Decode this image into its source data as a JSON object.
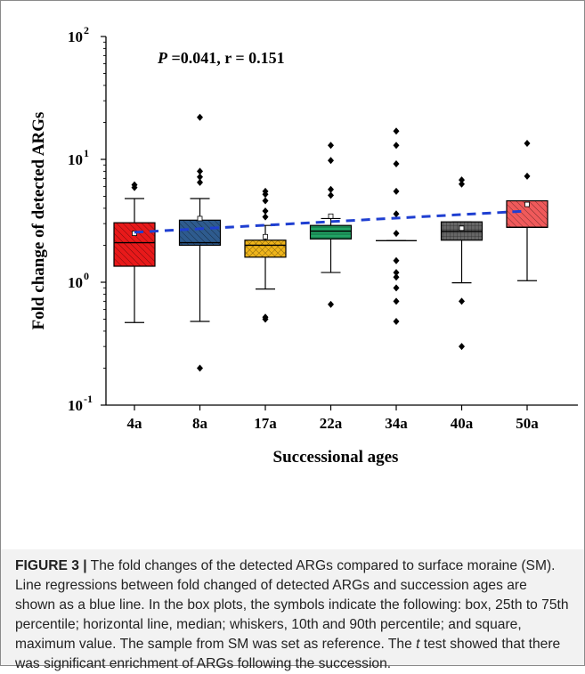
{
  "chart_data": {
    "type": "box",
    "annotation": {
      "p_label": "P",
      "p_rest": " =0.041, r = 0.151"
    },
    "ylabel": "Fold change of detected ARGs",
    "xlabel": "Successional ages",
    "yscale": "log",
    "ylim": [
      0.1,
      100
    ],
    "yticks": [
      {
        "value": 0.1,
        "base": "10",
        "exp": "-1"
      },
      {
        "value": 1,
        "base": "10",
        "exp": "0"
      },
      {
        "value": 10,
        "base": "10",
        "exp": "1"
      },
      {
        "value": 100,
        "base": "10",
        "exp": "2"
      }
    ],
    "categories": [
      "4a",
      "8a",
      "17a",
      "22a",
      "34a",
      "40a",
      "50a"
    ],
    "boxes": [
      {
        "label": "4a",
        "color": "#e8191a",
        "pattern": "diag",
        "q1": 1.35,
        "median": 2.1,
        "q3": 3.05,
        "whisker_low": 0.47,
        "whisker_high": 4.8,
        "mean": 2.5,
        "outliers": [
          5.9,
          6.2
        ]
      },
      {
        "label": "8a",
        "color": "#2e5b8e",
        "pattern": "diag",
        "q1": 2.0,
        "median": 2.1,
        "q3": 3.2,
        "whisker_low": 0.48,
        "whisker_high": 4.8,
        "mean": 3.3,
        "outliers": [
          0.2,
          6.5,
          7.2,
          8.0,
          22.0
        ]
      },
      {
        "label": "17a",
        "color": "#efb51b",
        "pattern": "cross",
        "q1": 1.6,
        "median": 2.0,
        "q3": 2.2,
        "whisker_low": 0.88,
        "whisker_high": 2.9,
        "mean": 2.35,
        "outliers": [
          0.5,
          0.52,
          3.4,
          3.8,
          4.6,
          5.2,
          5.5
        ]
      },
      {
        "label": "22a",
        "color": "#21a565",
        "pattern": "hline",
        "q1": 2.25,
        "median": 2.6,
        "q3": 2.9,
        "whisker_low": 1.2,
        "whisker_high": 3.3,
        "mean": 3.45,
        "outliers": [
          0.66,
          5.1,
          5.7,
          9.8,
          13.0
        ]
      },
      {
        "label": "34a",
        "color": "#888888",
        "pattern": "none",
        "q1": 2.18,
        "median": 2.18,
        "q3": 2.18,
        "whisker_low": 2.18,
        "whisker_high": 2.18,
        "mean": null,
        "outliers": [
          0.48,
          0.7,
          0.9,
          1.1,
          1.2,
          1.5,
          2.5,
          3.6,
          5.5,
          9.2,
          13.0,
          17.0
        ]
      },
      {
        "label": "40a",
        "color": "#666666",
        "pattern": "grid",
        "q1": 2.2,
        "median": 2.6,
        "q3": 3.1,
        "whisker_low": 0.99,
        "whisker_high": 3.1,
        "mean": 2.75,
        "outliers": [
          0.3,
          0.7,
          6.3,
          6.8
        ]
      },
      {
        "label": "50a",
        "color": "#f05a5b",
        "pattern": "diag",
        "q1": 2.8,
        "median": 2.8,
        "q3": 4.6,
        "whisker_low": 1.03,
        "whisker_high": 4.6,
        "mean": 4.3,
        "outliers": [
          7.3,
          13.5
        ]
      }
    ],
    "regression": {
      "color": "#1f3fd1",
      "style": "dashed",
      "from": {
        "x": "4a",
        "y": 2.55
      },
      "to": {
        "x": "50a",
        "y": 3.8
      }
    }
  },
  "caption": {
    "label": "FIGURE 3 |",
    "text_1": " The fold changes of the detected ARGs compared to surface moraine (SM). Line regressions between fold changed of detected ARGs and succession ages are shown as a blue line. In the box plots, the symbols indicate the following: box, 25th to 75th percentile; horizontal line, median; whiskers, 10th and 90th percentile; and square, maximum value. The sample from SM was set as reference. The ",
    "italic": "t",
    "text_2": " test showed that there was significant enrichment of ARGs following the succession."
  }
}
